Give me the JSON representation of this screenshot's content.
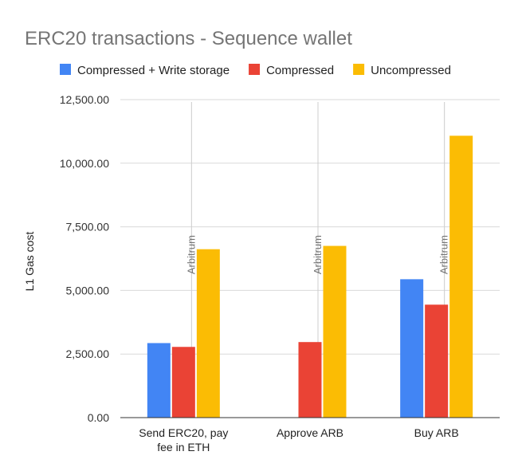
{
  "chart_data": {
    "type": "bar",
    "title": "ERC20 transactions - Sequence wallet",
    "xlabel": "",
    "ylabel": "L1 Gas cost",
    "ylim": [
      0,
      12500
    ],
    "yticks": [
      "0.00",
      "2,500.00",
      "5,000.00",
      "7,500.00",
      "10,000.00",
      "12,500.00"
    ],
    "ytick_values": [
      0,
      2500,
      5000,
      7500,
      10000,
      12500
    ],
    "grid": true,
    "legend_position": "top",
    "categories": [
      [
        "Send ERC20, pay",
        "fee in ETH"
      ],
      [
        "Approve ARB"
      ],
      [
        "Buy ARB"
      ]
    ],
    "series": [
      {
        "name": "Compressed + Write storage",
        "color": "#4285F4",
        "values": [
          2930,
          null,
          5440
        ]
      },
      {
        "name": "Compressed",
        "color": "#EA4335",
        "values": [
          2780,
          2970,
          4440
        ]
      },
      {
        "name": "Uncompressed",
        "color": "#FBBC04",
        "values": [
          6620,
          6750,
          11080
        ]
      }
    ],
    "annotations": [
      "Arbitrum",
      "Arbitrum",
      "Arbitrum"
    ]
  }
}
